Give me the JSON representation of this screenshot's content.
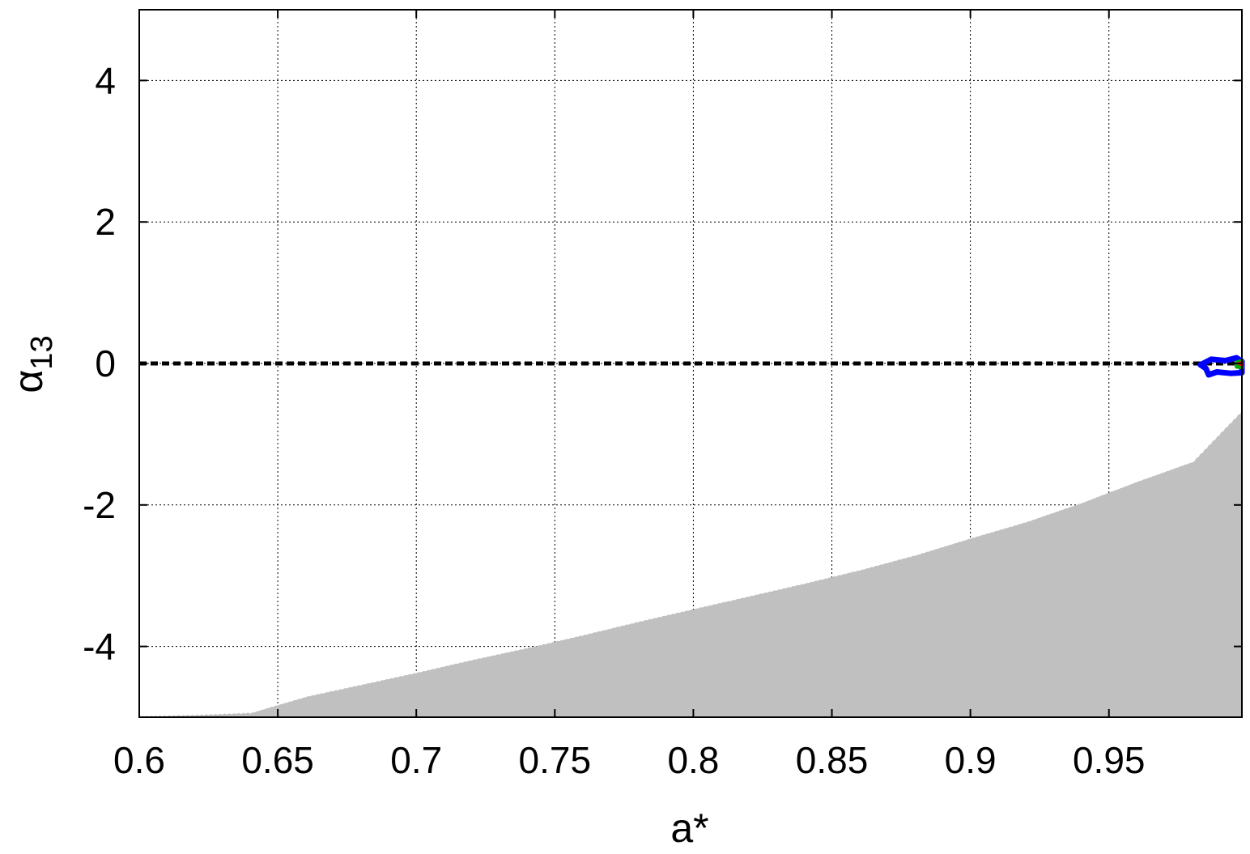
{
  "chart_data": {
    "type": "area",
    "xlabel": "a*",
    "ylabel": "α13",
    "xlim": [
      0.6,
      0.998
    ],
    "ylim": [
      -5,
      5
    ],
    "xticks": [
      {
        "value": 0.6,
        "label": "0.6"
      },
      {
        "value": 0.65,
        "label": "0.65"
      },
      {
        "value": 0.7,
        "label": "0.7"
      },
      {
        "value": 0.75,
        "label": "0.75"
      },
      {
        "value": 0.8,
        "label": "0.8"
      },
      {
        "value": 0.85,
        "label": "0.85"
      },
      {
        "value": 0.9,
        "label": "0.9"
      },
      {
        "value": 0.95,
        "label": "0.95"
      }
    ],
    "yticks": [
      {
        "value": -4,
        "label": "-4"
      },
      {
        "value": -2,
        "label": "-2"
      },
      {
        "value": 0,
        "label": "0"
      },
      {
        "value": 2,
        "label": "2"
      },
      {
        "value": 4,
        "label": "4"
      }
    ],
    "grid": true,
    "excluded_region": {
      "color": "#c0c0c0",
      "boundary": [
        [
          0.6,
          -5.0
        ],
        [
          0.62,
          -4.98
        ],
        [
          0.64,
          -4.95
        ],
        [
          0.66,
          -4.72
        ],
        [
          0.68,
          -4.55
        ],
        [
          0.7,
          -4.38
        ],
        [
          0.72,
          -4.2
        ],
        [
          0.74,
          -4.03
        ],
        [
          0.76,
          -3.85
        ],
        [
          0.78,
          -3.66
        ],
        [
          0.8,
          -3.48
        ],
        [
          0.82,
          -3.3
        ],
        [
          0.84,
          -3.12
        ],
        [
          0.86,
          -2.93
        ],
        [
          0.88,
          -2.72
        ],
        [
          0.9,
          -2.48
        ],
        [
          0.92,
          -2.25
        ],
        [
          0.94,
          -1.98
        ],
        [
          0.96,
          -1.68
        ],
        [
          0.98,
          -1.4
        ],
        [
          0.998,
          -0.67
        ]
      ]
    },
    "reference_line": {
      "y": 0,
      "style": "dashed",
      "color": "#000000"
    },
    "contours": [
      {
        "color": "#0000ff",
        "points": [
          [
            0.983,
            -0.02
          ],
          [
            0.987,
            0.06
          ],
          [
            0.992,
            0.04
          ],
          [
            0.996,
            0.08
          ],
          [
            0.998,
            0.03
          ],
          [
            0.998,
            -0.13
          ],
          [
            0.994,
            -0.14
          ],
          [
            0.989,
            -0.12
          ],
          [
            0.986,
            -0.16
          ],
          [
            0.985,
            -0.07
          ]
        ]
      },
      {
        "color": "#00aa00",
        "points": [
          [
            0.996,
            0.02
          ],
          [
            0.998,
            0.04
          ],
          [
            0.998,
            -0.06
          ],
          [
            0.996,
            -0.05
          ]
        ]
      },
      {
        "color": "#ff0000",
        "points": [
          [
            0.997,
            0.0
          ],
          [
            0.998,
            0.01
          ],
          [
            0.998,
            -0.02
          ]
        ]
      }
    ]
  }
}
